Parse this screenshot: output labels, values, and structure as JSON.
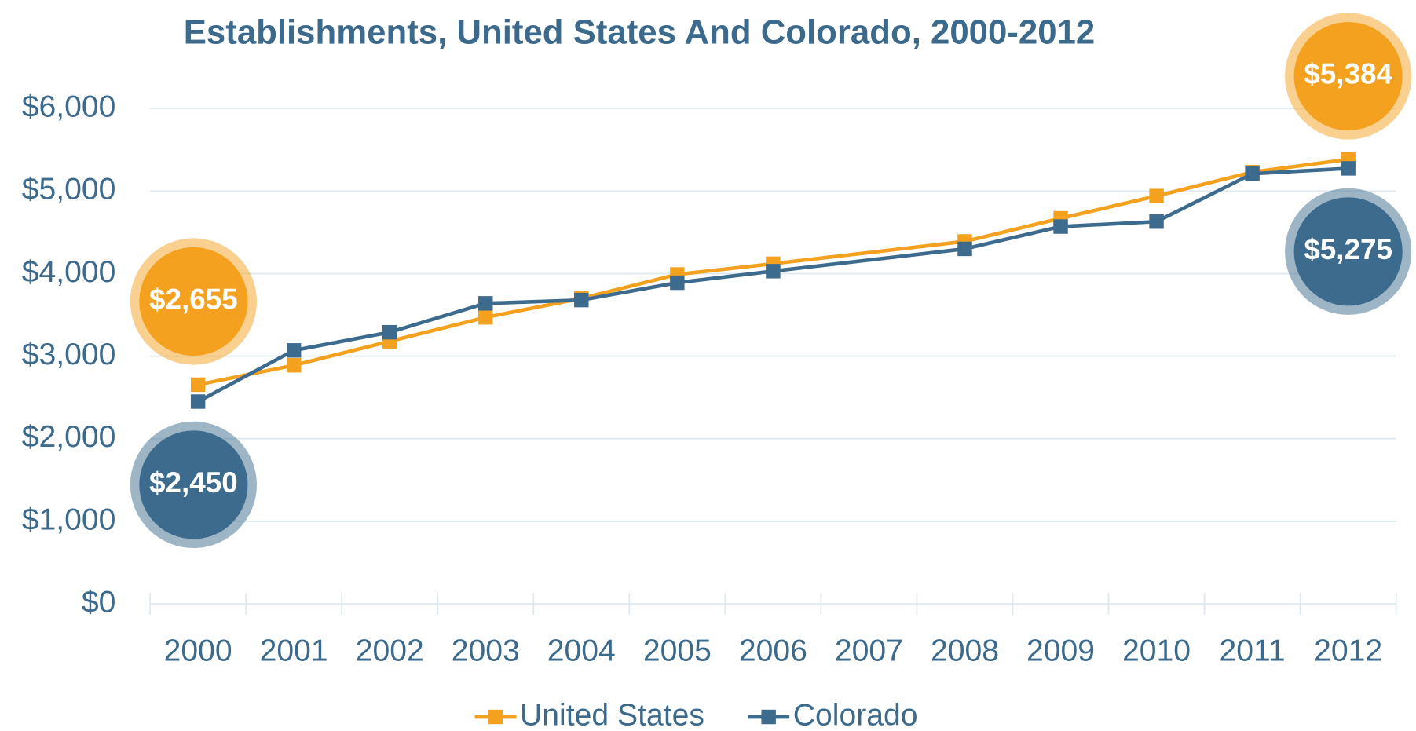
{
  "chart_data": {
    "type": "line",
    "title": "Establishments, United States And Colorado, 2000-2012",
    "x": [
      2000,
      2001,
      2002,
      2003,
      2004,
      2005,
      2006,
      2008,
      2009,
      2010,
      2011,
      2012
    ],
    "xlim": [
      1999.5,
      2012.5
    ],
    "xticks": [
      2000,
      2001,
      2002,
      2003,
      2004,
      2005,
      2006,
      2007,
      2008,
      2009,
      2010,
      2011,
      2012
    ],
    "ylim": [
      0,
      6000
    ],
    "yticks": [
      {
        "value": 0,
        "label": "$0"
      },
      {
        "value": 1000,
        "label": "$1,000"
      },
      {
        "value": 2000,
        "label": "$2,000"
      },
      {
        "value": 3000,
        "label": "$3,000"
      },
      {
        "value": 4000,
        "label": "$4,000"
      },
      {
        "value": 5000,
        "label": "$5,000"
      },
      {
        "value": 6000,
        "label": "$6,000"
      }
    ],
    "grid": true,
    "legend": "bottom",
    "series": [
      {
        "name": "United States",
        "color": "#f4a11f",
        "values": [
          2655,
          2890,
          3180,
          3470,
          3700,
          3990,
          4120,
          4390,
          4670,
          4940,
          5230,
          5384
        ],
        "value_labels": [
          "$2,655",
          null,
          null,
          null,
          null,
          null,
          null,
          null,
          null,
          null,
          null,
          "$5,384"
        ]
      },
      {
        "name": "Colorado",
        "color": "#3d6b8e",
        "values": [
          2450,
          3070,
          3290,
          3640,
          3680,
          3890,
          4030,
          4300,
          4570,
          4630,
          5210,
          5275
        ],
        "value_labels": [
          "$2,450",
          null,
          null,
          null,
          null,
          null,
          null,
          null,
          null,
          null,
          null,
          "$5,275"
        ]
      }
    ]
  }
}
